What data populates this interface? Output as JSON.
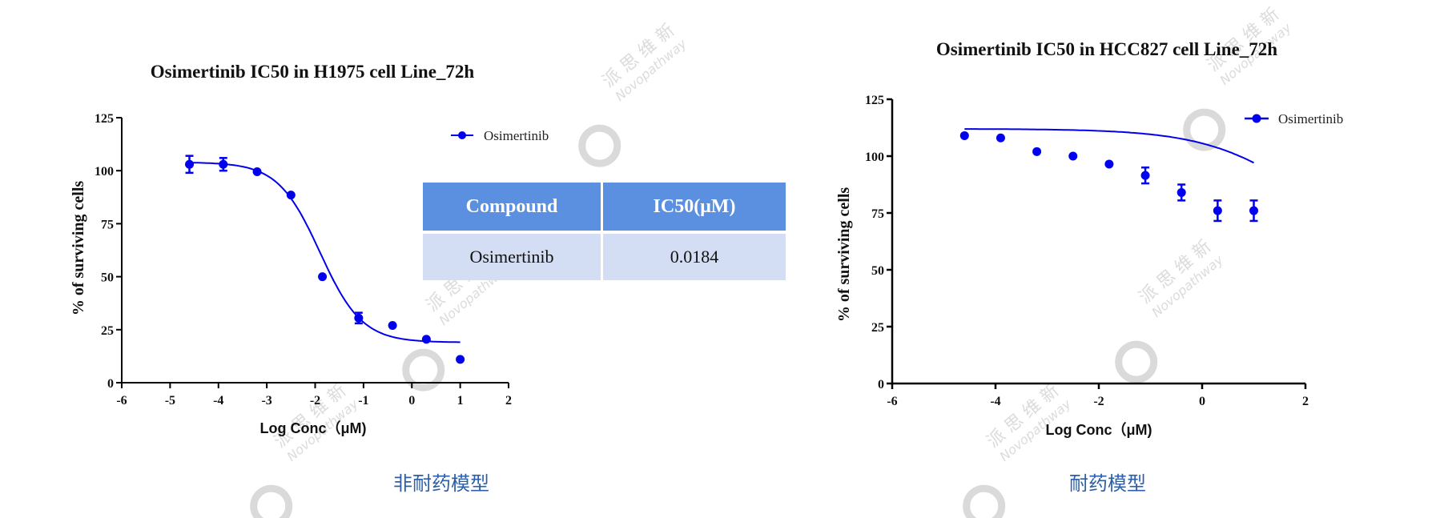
{
  "chart_data": [
    {
      "type": "scatter",
      "title": "Osimertinib  IC50 in H1975 cell Line_72h",
      "xlabel": "Log Conc（μM)",
      "ylabel": "% of surviving cells",
      "xlim": [
        -6,
        2
      ],
      "ylim": [
        0,
        125
      ],
      "xticks": [
        -6,
        -5,
        -4,
        -3,
        -2,
        -1,
        0,
        1,
        2
      ],
      "yticks": [
        0,
        25,
        50,
        75,
        100,
        125
      ],
      "legend_position": "top-right",
      "series": [
        {
          "name": "Osimertinib",
          "color": "#0000ee",
          "x": [
            -4.6,
            -3.9,
            -3.2,
            -2.5,
            -1.85,
            -1.1,
            -0.4,
            0.3,
            1.0
          ],
          "y": [
            103,
            103,
            99.5,
            88.5,
            50,
            30.5,
            27,
            20.5,
            11
          ],
          "error": [
            4,
            3,
            0,
            0,
            0,
            2.5,
            0,
            0,
            0
          ],
          "fit": {
            "top": 104,
            "bottom": 19,
            "logIC50": -1.9,
            "hill": -1.0,
            "x_range": [
              -4.6,
              1.0
            ]
          }
        }
      ]
    },
    {
      "type": "scatter",
      "title": "Osimertinib  IC50 in HCC827 cell Line_72h",
      "xlabel": "Log Conc（μM)",
      "ylabel": "% of surviving cells",
      "xlim": [
        -6,
        2
      ],
      "ylim": [
        0,
        125
      ],
      "xticks": [
        -6,
        -4,
        -2,
        0,
        2
      ],
      "yticks": [
        0,
        25,
        50,
        75,
        100,
        125
      ],
      "legend_position": "top-right",
      "series": [
        {
          "name": "Osimertinib",
          "color": "#0000ee",
          "x": [
            -4.6,
            -3.9,
            -3.2,
            -2.5,
            -1.8,
            -1.1,
            -0.4,
            0.3,
            1.0
          ],
          "y": [
            109,
            108,
            102,
            100,
            96.5,
            91.5,
            84,
            76,
            76
          ],
          "error": [
            0,
            0,
            0,
            0,
            0,
            3.5,
            3.5,
            4.5,
            4.5
          ],
          "fit": {
            "top": 112,
            "bottom": 55,
            "logIC50": 2.0,
            "hill": -0.45,
            "x_range": [
              -4.6,
              1.0
            ]
          }
        }
      ]
    }
  ],
  "table": {
    "headers": [
      "Compound",
      "IC50(μM)"
    ],
    "rows": [
      [
        "Osimertinib",
        "0.0184"
      ]
    ]
  },
  "captions": {
    "left": "非耐药模型",
    "right": "耐药模型"
  },
  "watermark": {
    "text_cn": "派 思 维 新",
    "text_en": "Novopathway"
  }
}
